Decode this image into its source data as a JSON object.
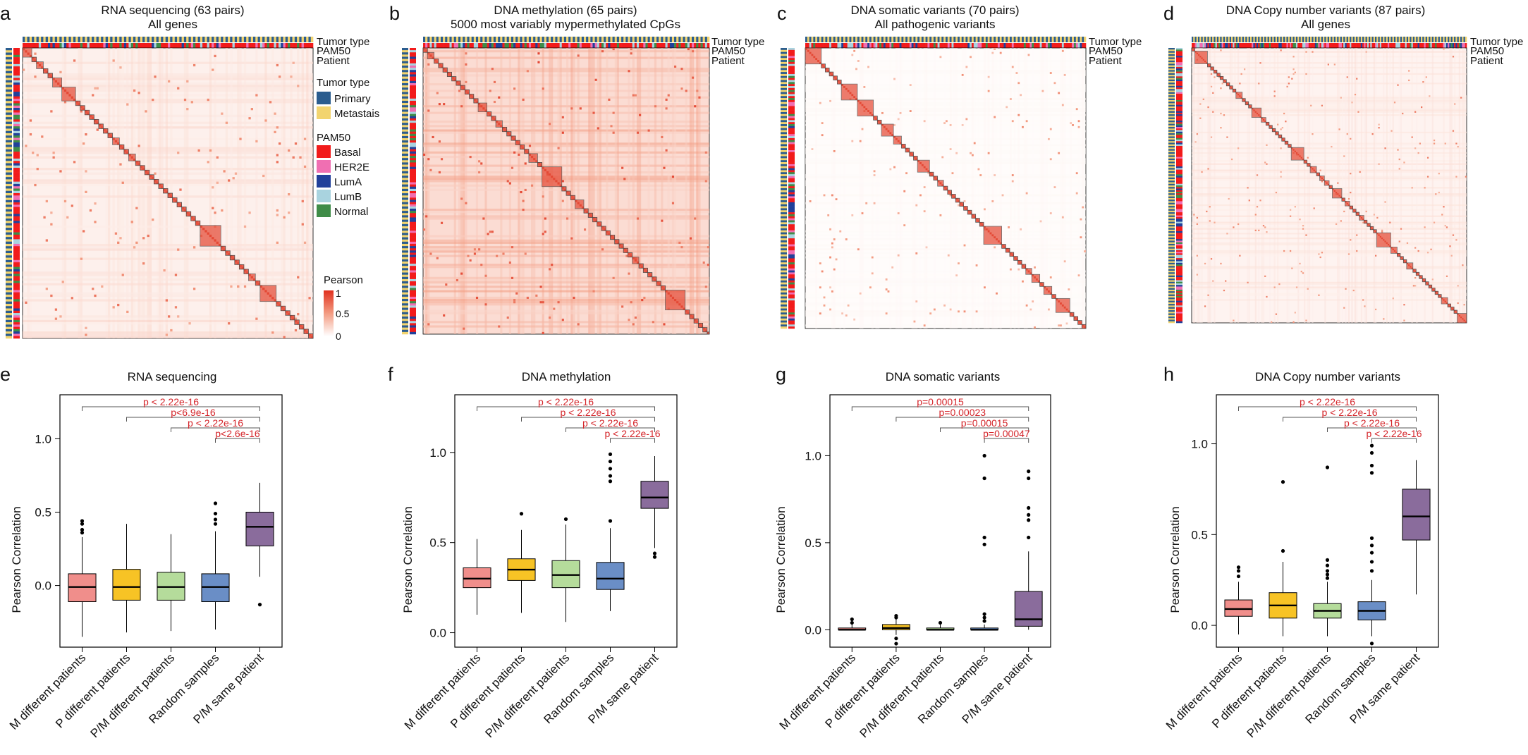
{
  "colors": {
    "primary": "#2b5d8f",
    "metastasis": "#f2d46f",
    "basal": "#f21b1b",
    "her2e": "#f06fb2",
    "luma": "#21409a",
    "lumb": "#a9d3df",
    "normal": "#3f8c48",
    "heat_high": "#e0311f",
    "heat_mid": "#f39c82",
    "heat_low": "#ffffff",
    "sig": "#d4252a"
  },
  "track_labels": [
    "Tumor type",
    "PAM50",
    "Patient"
  ],
  "legend": {
    "tumor_title": "Tumor type",
    "tumor_items": [
      "Primary",
      "Metastais"
    ],
    "pam_title": "PAM50",
    "pam_items": [
      "Basal",
      "HER2E",
      "LumA",
      "LumB",
      "Normal"
    ],
    "pearson_title": "Pearson",
    "pearson_ticks": [
      "1",
      "0.5",
      "0"
    ]
  },
  "heatmaps": [
    {
      "letter": "a",
      "title": "RNA sequencing (63 pairs)",
      "subtitle": "All genes",
      "n_pairs": 63,
      "bg_level": 0.15
    },
    {
      "letter": "b",
      "title": "DNA methylation (65 pairs)",
      "subtitle": "5000 most variably mypermethylated CpGs",
      "n_pairs": 65,
      "bg_level": 0.35
    },
    {
      "letter": "c",
      "title": "DNA somatic variants (70 pairs)",
      "subtitle": "All pathogenic variants",
      "n_pairs": 70,
      "bg_level": 0.03
    },
    {
      "letter": "d",
      "title": "DNA Copy number variants (87 pairs)",
      "subtitle": "All genes",
      "n_pairs": 87,
      "bg_level": 0.12
    }
  ],
  "chart_data": [
    {
      "letter": "e",
      "type": "box",
      "title": "RNA sequencing",
      "ylabel": "Pearson Correlation",
      "ylim": [
        -0.42,
        1.3
      ],
      "yticks": [
        0.0,
        0.5,
        1.0
      ],
      "ytick_labels": [
        "0.0",
        "0.5",
        "1.0"
      ],
      "categories": [
        "M different patients",
        "P different patients",
        "P/M different patients",
        "Random samples",
        "P/M same patient"
      ],
      "box_colors": [
        "#f08e8b",
        "#f7c325",
        "#b5dc9b",
        "#6a8ec6",
        "#8a6c9c"
      ],
      "boxes": [
        {
          "q1": -0.11,
          "median": -0.01,
          "q3": 0.08,
          "wl": -0.35,
          "wh": 0.33,
          "outliers": [
            0.36,
            0.38,
            0.42,
            0.44
          ]
        },
        {
          "q1": -0.1,
          "median": -0.01,
          "q3": 0.11,
          "wl": -0.32,
          "wh": 0.42,
          "outliers": []
        },
        {
          "q1": -0.1,
          "median": -0.01,
          "q3": 0.09,
          "wl": -0.31,
          "wh": 0.35,
          "outliers": []
        },
        {
          "q1": -0.11,
          "median": -0.01,
          "q3": 0.08,
          "wl": -0.3,
          "wh": 0.37,
          "outliers": [
            0.42,
            0.45,
            0.49,
            0.56
          ]
        },
        {
          "q1": 0.27,
          "median": 0.4,
          "q3": 0.5,
          "wl": 0.06,
          "wh": 0.7,
          "outliers": [
            -0.13
          ]
        }
      ],
      "comparisons": [
        {
          "from": 0,
          "to": 4,
          "label": "p < 2.22e-16"
        },
        {
          "from": 1,
          "to": 4,
          "label": "p<6.9e-16"
        },
        {
          "from": 2,
          "to": 4,
          "label": "p < 2.22e-16"
        },
        {
          "from": 3,
          "to": 4,
          "label": "p<2.6e-16"
        }
      ]
    },
    {
      "letter": "f",
      "type": "box",
      "title": "DNA methylation",
      "ylabel": "Pearson Correlation",
      "ylim": [
        -0.08,
        1.32
      ],
      "yticks": [
        0.0,
        0.5,
        1.0
      ],
      "ytick_labels": [
        "0.0",
        "0.5",
        "1.0"
      ],
      "categories": [
        "M different patients",
        "P different patients",
        "P/M different patients",
        "Random samples",
        "P/M same patient"
      ],
      "box_colors": [
        "#f08e8b",
        "#f7c325",
        "#b5dc9b",
        "#6a8ec6",
        "#8a6c9c"
      ],
      "boxes": [
        {
          "q1": 0.25,
          "median": 0.3,
          "q3": 0.36,
          "wl": 0.1,
          "wh": 0.52,
          "outliers": []
        },
        {
          "q1": 0.29,
          "median": 0.35,
          "q3": 0.41,
          "wl": 0.11,
          "wh": 0.57,
          "outliers": [
            0.66
          ]
        },
        {
          "q1": 0.25,
          "median": 0.32,
          "q3": 0.4,
          "wl": 0.06,
          "wh": 0.6,
          "outliers": [
            0.63
          ]
        },
        {
          "q1": 0.24,
          "median": 0.3,
          "q3": 0.39,
          "wl": 0.12,
          "wh": 0.58,
          "outliers": [
            0.62,
            0.84,
            0.87,
            0.91,
            0.95,
            0.99
          ]
        },
        {
          "q1": 0.69,
          "median": 0.75,
          "q3": 0.84,
          "wl": 0.47,
          "wh": 0.98,
          "outliers": [
            0.42,
            0.44
          ]
        }
      ],
      "comparisons": [
        {
          "from": 0,
          "to": 4,
          "label": "p < 2.22e-16"
        },
        {
          "from": 1,
          "to": 4,
          "label": "p < 2.22e-16"
        },
        {
          "from": 2,
          "to": 4,
          "label": "p < 2.22e-16"
        },
        {
          "from": 3,
          "to": 4,
          "label": "p < 2.22e-16"
        }
      ]
    },
    {
      "letter": "g",
      "type": "box",
      "title": "DNA somatic variants",
      "ylabel": "Pearson Correlation",
      "ylim": [
        -0.1,
        1.35
      ],
      "yticks": [
        0.0,
        0.5,
        1.0
      ],
      "ytick_labels": [
        "0.0",
        "0.5",
        "1.0"
      ],
      "categories": [
        "M different patients",
        "P different patients",
        "P/M different patients",
        "Random samples",
        "P/M same patient"
      ],
      "box_colors": [
        "#f08e8b",
        "#f7c325",
        "#b5dc9b",
        "#6a8ec6",
        "#8a6c9c"
      ],
      "boxes": [
        {
          "q1": 0.0,
          "median": 0.0,
          "q3": 0.01,
          "wl": 0.0,
          "wh": 0.03,
          "outliers": [
            0.04,
            0.06
          ]
        },
        {
          "q1": 0.0,
          "median": 0.01,
          "q3": 0.03,
          "wl": -0.03,
          "wh": 0.06,
          "outliers": [
            -0.05,
            -0.08,
            0.07,
            0.08
          ]
        },
        {
          "q1": 0.0,
          "median": 0.0,
          "q3": 0.01,
          "wl": 0.0,
          "wh": 0.03,
          "outliers": [
            0.04
          ]
        },
        {
          "q1": 0.0,
          "median": 0.0,
          "q3": 0.01,
          "wl": 0.0,
          "wh": 0.03,
          "outliers": [
            0.05,
            0.07,
            0.09,
            0.49,
            0.53,
            0.87,
            1.0
          ]
        },
        {
          "q1": 0.02,
          "median": 0.06,
          "q3": 0.22,
          "wl": 0.0,
          "wh": 0.45,
          "outliers": [
            0.53,
            0.63,
            0.66,
            0.7,
            0.87,
            0.91
          ]
        }
      ],
      "comparisons": [
        {
          "from": 0,
          "to": 4,
          "label": "p=0.00015"
        },
        {
          "from": 1,
          "to": 4,
          "label": "p=0.00023"
        },
        {
          "from": 2,
          "to": 4,
          "label": "p=0.00015"
        },
        {
          "from": 3,
          "to": 4,
          "label": "p=0.00047"
        }
      ]
    },
    {
      "letter": "h",
      "type": "box",
      "title": "DNA Copy number variants",
      "ylabel": "Pearson Correlation",
      "ylim": [
        -0.12,
        1.27
      ],
      "yticks": [
        0.0,
        0.5,
        1.0
      ],
      "ytick_labels": [
        "0.0",
        "0.5",
        "1.0"
      ],
      "categories": [
        "M different patients",
        "P different patients",
        "P/M different patients",
        "Random samples",
        "P/M same patient"
      ],
      "box_colors": [
        "#f08e8b",
        "#f7c325",
        "#b5dc9b",
        "#6a8ec6",
        "#8a6c9c"
      ],
      "boxes": [
        {
          "q1": 0.05,
          "median": 0.09,
          "q3": 0.14,
          "wl": -0.05,
          "wh": 0.24,
          "outliers": [
            0.27,
            0.3,
            0.32
          ]
        },
        {
          "q1": 0.04,
          "median": 0.11,
          "q3": 0.18,
          "wl": -0.06,
          "wh": 0.35,
          "outliers": [
            0.41,
            0.79
          ]
        },
        {
          "q1": 0.04,
          "median": 0.08,
          "q3": 0.12,
          "wl": -0.06,
          "wh": 0.24,
          "outliers": [
            0.26,
            0.28,
            0.3,
            0.33,
            0.36,
            0.87
          ]
        },
        {
          "q1": 0.03,
          "median": 0.08,
          "q3": 0.13,
          "wl": -0.06,
          "wh": 0.25,
          "outliers": [
            -0.1,
            0.3,
            0.35,
            0.4,
            0.44,
            0.48,
            0.84,
            0.88,
            0.95,
            0.99
          ]
        },
        {
          "q1": 0.47,
          "median": 0.6,
          "q3": 0.75,
          "wl": 0.17,
          "wh": 0.91,
          "outliers": []
        }
      ],
      "comparisons": [
        {
          "from": 0,
          "to": 4,
          "label": "p < 2.22e-16"
        },
        {
          "from": 1,
          "to": 4,
          "label": "p < 2.22e-16"
        },
        {
          "from": 2,
          "to": 4,
          "label": "p < 2.22e-16"
        },
        {
          "from": 3,
          "to": 4,
          "label": "p < 2.22e-16"
        }
      ]
    }
  ]
}
